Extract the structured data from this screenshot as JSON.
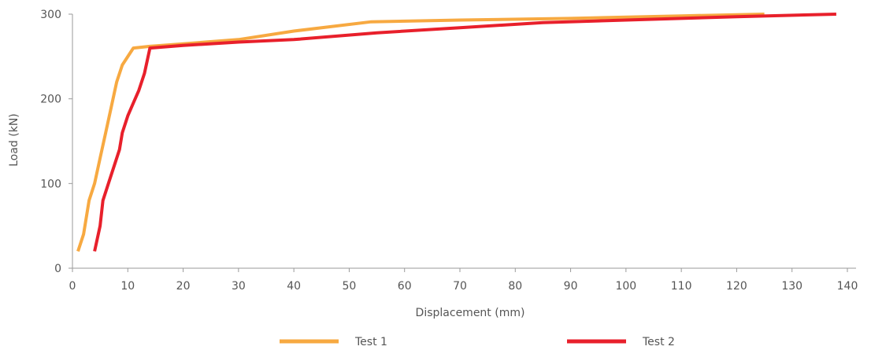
{
  "chart_data": {
    "type": "line",
    "title": "",
    "xlabel": "Displacement (mm)",
    "ylabel": "Load (kN)",
    "xlim": [
      0,
      140
    ],
    "ylim": [
      0,
      300
    ],
    "xticks": [
      "0",
      "10",
      "20",
      "30",
      "40",
      "50",
      "60",
      "70",
      "80",
      "90",
      "100",
      "110",
      "120",
      "130",
      "140"
    ],
    "yticks": [
      "0",
      "100",
      "200",
      "300"
    ],
    "grid": false,
    "legend_position": "bottom",
    "series": [
      {
        "name": "Test 1",
        "color": "#F7A941",
        "points": [
          [
            1,
            20
          ],
          [
            2,
            40
          ],
          [
            3,
            80
          ],
          [
            4,
            100
          ],
          [
            5,
            130
          ],
          [
            6,
            160
          ],
          [
            7,
            190
          ],
          [
            8,
            220
          ],
          [
            9,
            240
          ],
          [
            11,
            260
          ],
          [
            14,
            262
          ],
          [
            20,
            265
          ],
          [
            30,
            270
          ],
          [
            40,
            280
          ],
          [
            54,
            291
          ],
          [
            70,
            293
          ],
          [
            90,
            295
          ],
          [
            110,
            298
          ],
          [
            125,
            300
          ]
        ]
      },
      {
        "name": "Test 2",
        "color": "#E8202B",
        "points": [
          [
            4,
            20
          ],
          [
            5,
            50
          ],
          [
            5.5,
            80
          ],
          [
            6.5,
            100
          ],
          [
            7.5,
            120
          ],
          [
            8.5,
            140
          ],
          [
            9,
            160
          ],
          [
            10,
            180
          ],
          [
            11,
            195
          ],
          [
            12,
            210
          ],
          [
            13,
            230
          ],
          [
            14,
            260
          ],
          [
            20,
            263
          ],
          [
            30,
            267
          ],
          [
            40,
            270
          ],
          [
            55,
            278
          ],
          [
            70,
            284
          ],
          [
            85,
            290
          ],
          [
            100,
            293
          ],
          [
            120,
            297
          ],
          [
            138,
            300
          ]
        ]
      }
    ]
  }
}
